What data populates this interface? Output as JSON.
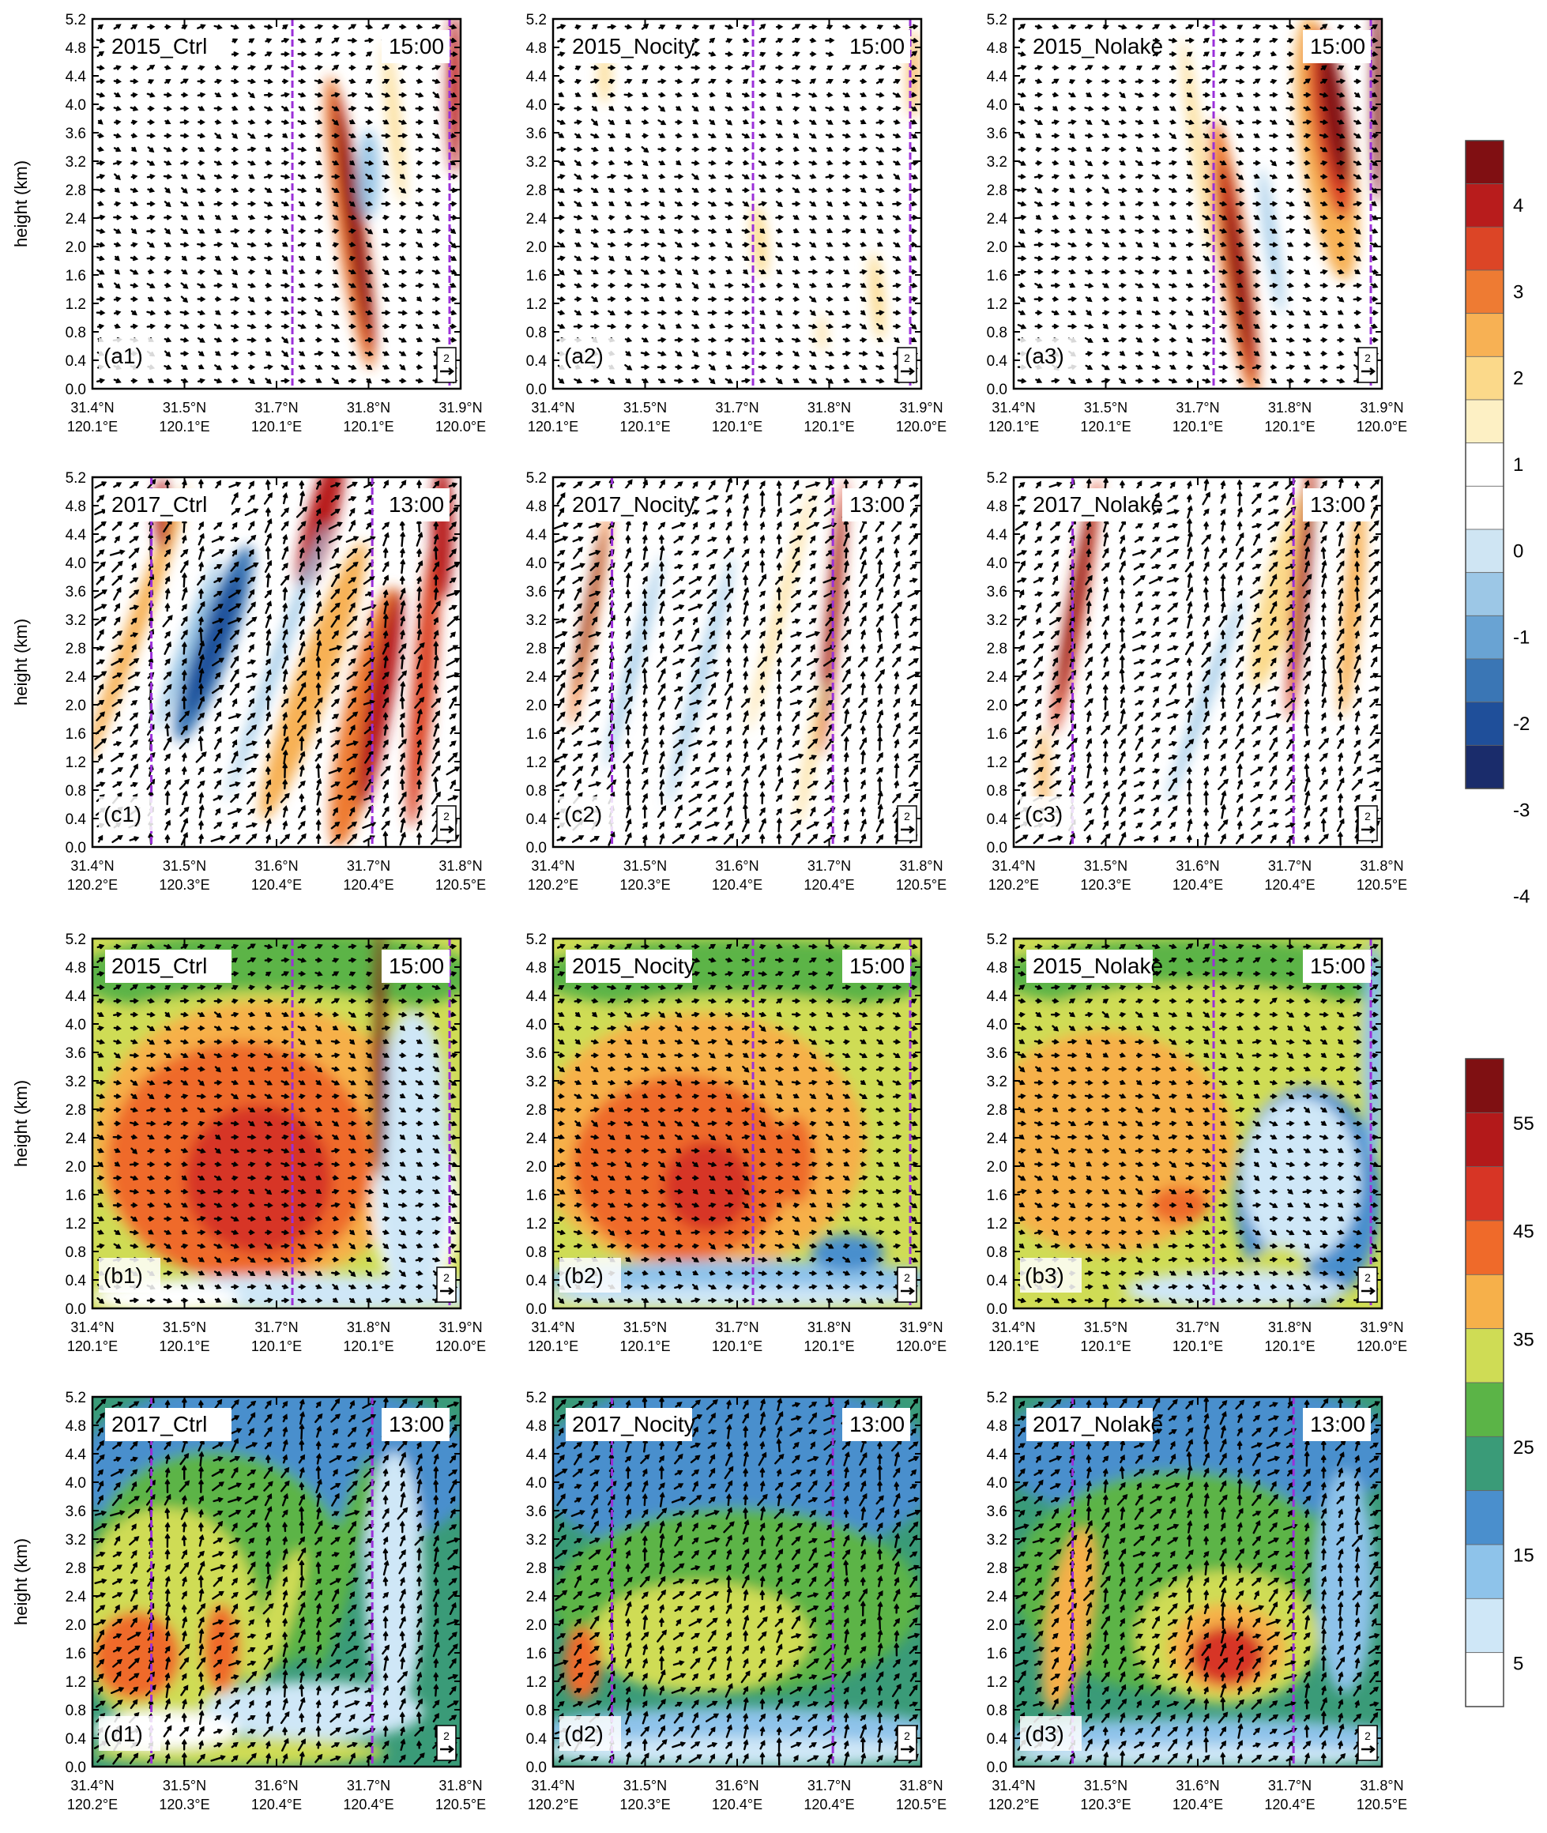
{
  "colors": {
    "divergent": [
      "#1a2c6b",
      "#1f4f9a",
      "#3a76b5",
      "#69a3d3",
      "#9cc7e6",
      "#cfe5f3",
      "#ffffff",
      "#ffffff",
      "#fdf0c4",
      "#fbd98a",
      "#f7b154",
      "#ee7b33",
      "#dc4526",
      "#b81c1c",
      "#800f12"
    ],
    "sequential": [
      "#ffffff",
      "#cfe7f7",
      "#8ec3ea",
      "#4a8fcd",
      "#3a9b78",
      "#5bb447",
      "#cfdc55",
      "#f6b04a",
      "#ef6a2a",
      "#d73525",
      "#b3191a",
      "#7f1012"
    ],
    "purple_line": "#9b30d9",
    "arrow": "#000000"
  },
  "colorbars": [
    {
      "id": "vertical-velocity",
      "ticks": [
        "4",
        "3",
        "2",
        "1",
        "0",
        "-1",
        "-2",
        "-3",
        "-4"
      ]
    },
    {
      "id": "reflectivity",
      "ticks": [
        "55",
        "45",
        "35",
        "25",
        "15",
        "5"
      ]
    }
  ],
  "rows": [
    {
      "key": "a",
      "ylabel": "height (km)",
      "yticks": [
        "5.2",
        "4.8",
        "4.4",
        "4.0",
        "3.6",
        "3.2",
        "2.8",
        "2.4",
        "2.0",
        "1.6",
        "1.2",
        "0.8",
        "0.4",
        "0.0"
      ],
      "xticks_lat": [
        "31.4°N",
        "31.5°N",
        "31.7°N",
        "31.8°N",
        "31.9°N"
      ],
      "xticks_lon": [
        "120.1°E",
        "120.1°E",
        "120.1°E",
        "120.1°E",
        "120.0°E"
      ],
      "panels": [
        {
          "id": "a1",
          "label": "(a1)",
          "case": "2015_Ctrl",
          "time": "15:00",
          "vector_ref": "2"
        },
        {
          "id": "a2",
          "label": "(a2)",
          "case": "2015_Nocity",
          "time": "15:00",
          "vector_ref": "2"
        },
        {
          "id": "a3",
          "label": "(a3)",
          "case": "2015_Nolake",
          "time": "15:00",
          "vector_ref": "2"
        }
      ]
    },
    {
      "key": "c",
      "ylabel": "height (km)",
      "yticks": [
        "5.2",
        "4.8",
        "4.4",
        "4.0",
        "3.6",
        "3.2",
        "2.8",
        "2.4",
        "2.0",
        "1.6",
        "1.2",
        "0.8",
        "0.4",
        "0.0"
      ],
      "xticks_lat": [
        "31.4°N",
        "31.5°N",
        "31.6°N",
        "31.7°N",
        "31.8°N"
      ],
      "xticks_lon": [
        "120.2°E",
        "120.3°E",
        "120.4°E",
        "120.4°E",
        "120.5°E"
      ],
      "panels": [
        {
          "id": "c1",
          "label": "(c1)",
          "case": "2017_Ctrl",
          "time": "13:00",
          "vector_ref": "2"
        },
        {
          "id": "c2",
          "label": "(c2)",
          "case": "2017_Nocity",
          "time": "13:00",
          "vector_ref": "2"
        },
        {
          "id": "c3",
          "label": "(c3)",
          "case": "2017_Nolake",
          "time": "13:00",
          "vector_ref": "2"
        }
      ]
    },
    {
      "key": "b",
      "ylabel": "height (km)",
      "yticks": [
        "5.2",
        "4.8",
        "4.4",
        "4.0",
        "3.6",
        "3.2",
        "2.8",
        "2.4",
        "2.0",
        "1.6",
        "1.2",
        "0.8",
        "0.4",
        "0.0"
      ],
      "xticks_lat": [
        "31.4°N",
        "31.5°N",
        "31.7°N",
        "31.8°N",
        "31.9°N"
      ],
      "xticks_lon": [
        "120.1°E",
        "120.1°E",
        "120.1°E",
        "120.1°E",
        "120.0°E"
      ],
      "panels": [
        {
          "id": "b1",
          "label": "(b1)",
          "case": "2015_Ctrl",
          "time": "15:00",
          "vector_ref": "2"
        },
        {
          "id": "b2",
          "label": "(b2)",
          "case": "2015_Nocity",
          "time": "15:00",
          "vector_ref": "2"
        },
        {
          "id": "b3",
          "label": "(b3)",
          "case": "2015_Nolake",
          "time": "15:00",
          "vector_ref": "2"
        }
      ]
    },
    {
      "key": "d",
      "ylabel": "height (km)",
      "yticks": [
        "5.2",
        "4.8",
        "4.4",
        "4.0",
        "3.6",
        "3.2",
        "2.8",
        "2.4",
        "2.0",
        "1.6",
        "1.2",
        "0.8",
        "0.4",
        "0.0"
      ],
      "xticks_lat": [
        "31.4°N",
        "31.5°N",
        "31.6°N",
        "31.7°N",
        "31.8°N"
      ],
      "xticks_lon": [
        "120.2°E",
        "120.3°E",
        "120.4°E",
        "120.4°E",
        "120.5°E"
      ],
      "panels": [
        {
          "id": "d1",
          "label": "(d1)",
          "case": "2017_Ctrl",
          "time": "13:00",
          "vector_ref": "2"
        },
        {
          "id": "d2",
          "label": "(d2)",
          "case": "2017_Nocity",
          "time": "13:00",
          "vector_ref": "2"
        },
        {
          "id": "d3",
          "label": "(d3)",
          "case": "2017_Nolake",
          "time": "13:00",
          "vector_ref": "2"
        }
      ]
    }
  ],
  "chart_data": {
    "type": "heatmap",
    "title": "",
    "ylabel": "height (km)",
    "ylim": [
      0.0,
      5.2
    ],
    "field_colorbars": {
      "a": "vertical-velocity",
      "c": "vertical-velocity",
      "b": "reflectivity",
      "d": "reflectivity"
    },
    "colorbar_vertical_velocity_ticks": [
      -4,
      -3,
      -2,
      -1,
      0,
      1,
      2,
      3,
      4
    ],
    "colorbar_reflectivity_ticks": [
      5,
      15,
      25,
      35,
      45,
      55
    ],
    "panels": [
      "a1",
      "a2",
      "a3",
      "c1",
      "c2",
      "c3",
      "b1",
      "b2",
      "b3",
      "d1",
      "d2",
      "d3"
    ]
  }
}
